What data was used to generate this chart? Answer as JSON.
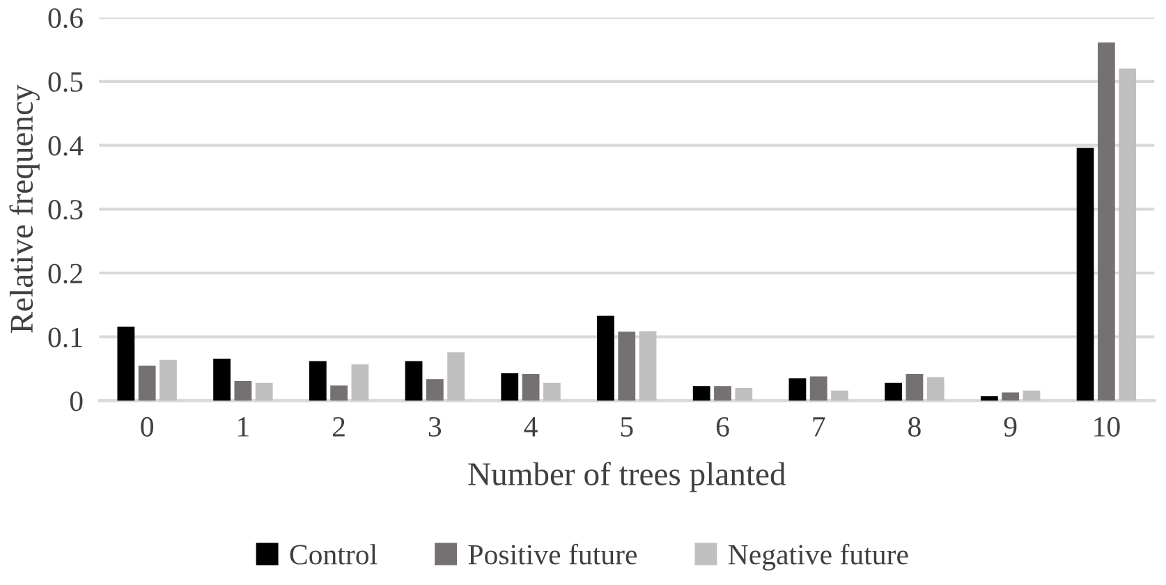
{
  "chart_data": {
    "type": "bar",
    "xlabel": "Number of trees planted",
    "ylabel": "Relative frequency",
    "categories": [
      "0",
      "1",
      "2",
      "3",
      "4",
      "5",
      "6",
      "7",
      "8",
      "9",
      "10"
    ],
    "series": [
      {
        "name": "Control",
        "color": "#000000",
        "values": [
          0.116,
          0.066,
          0.062,
          0.062,
          0.043,
          0.133,
          0.023,
          0.035,
          0.028,
          0.007,
          0.396
        ]
      },
      {
        "name": "Positive future",
        "color": "#767171",
        "values": [
          0.055,
          0.031,
          0.024,
          0.034,
          0.042,
          0.108,
          0.023,
          0.038,
          0.042,
          0.013,
          0.561
        ]
      },
      {
        "name": "Negative future",
        "color": "#bfbfbf",
        "values": [
          0.064,
          0.028,
          0.057,
          0.076,
          0.028,
          0.109,
          0.02,
          0.016,
          0.037,
          0.016,
          0.52
        ]
      }
    ],
    "ylim": [
      0,
      0.6
    ],
    "yticks": [
      {
        "value": 0,
        "label": "0"
      },
      0.1,
      0.2,
      0.3,
      0.4,
      0.5,
      0.6
    ],
    "grid": "y",
    "legend": "bottom"
  }
}
